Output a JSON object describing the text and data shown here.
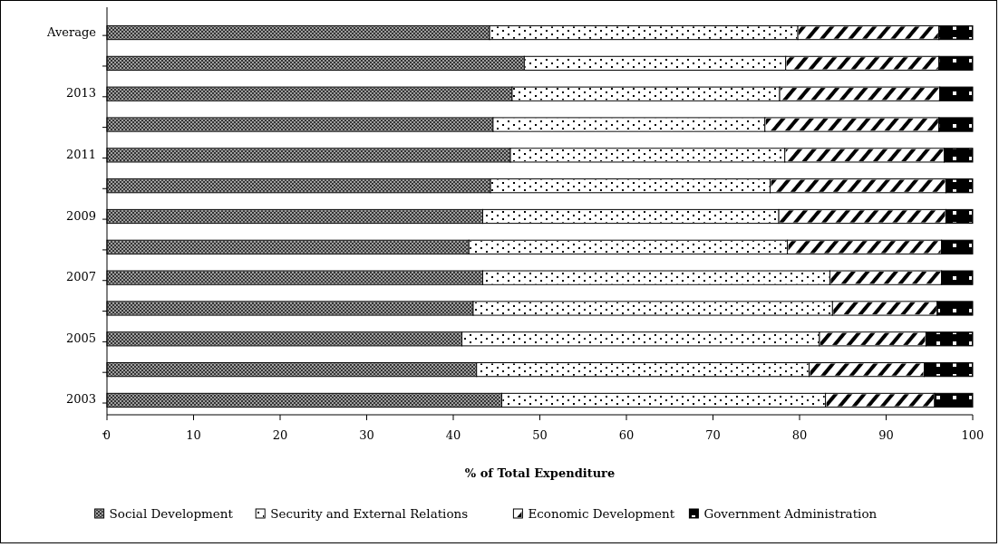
{
  "chart_data": {
    "type": "bar",
    "orientation": "horizontal",
    "stacked": true,
    "xlabel": "% of Total Expenditure",
    "categories": [
      "Average",
      null,
      "2013",
      null,
      "2011",
      null,
      "2009",
      null,
      "2007",
      null,
      "2005",
      null,
      "2003"
    ],
    "xlim": [
      0,
      100
    ],
    "xticks": [
      0,
      10,
      20,
      30,
      40,
      50,
      60,
      70,
      80,
      90,
      100
    ],
    "grid": false,
    "legend": "bottom",
    "series": [
      {
        "name": "Social Development",
        "color": "#a0a0a0",
        "values": [
          44.2,
          48.2,
          46.8,
          44.6,
          46.6,
          44.3,
          43.4,
          41.8,
          43.4,
          42.3,
          41.0,
          42.7,
          45.6
        ]
      },
      {
        "name": "Security and External Relations",
        "color": "#ffffff",
        "values": [
          35.6,
          30.2,
          30.9,
          31.4,
          31.7,
          32.3,
          34.2,
          36.8,
          40.1,
          41.5,
          41.3,
          38.4,
          37.4
        ]
      },
      {
        "name": "Economic Development",
        "color": "#ffffff",
        "values": [
          16.3,
          17.7,
          18.5,
          20.1,
          18.4,
          20.3,
          19.3,
          17.8,
          12.9,
          12.1,
          12.3,
          13.3,
          12.6
        ]
      },
      {
        "name": "Government Administration",
        "color": "#000000",
        "values": [
          3.9,
          3.9,
          3.8,
          3.9,
          3.3,
          3.1,
          3.1,
          3.6,
          3.6,
          4.1,
          5.4,
          5.6,
          4.4
        ]
      }
    ]
  }
}
